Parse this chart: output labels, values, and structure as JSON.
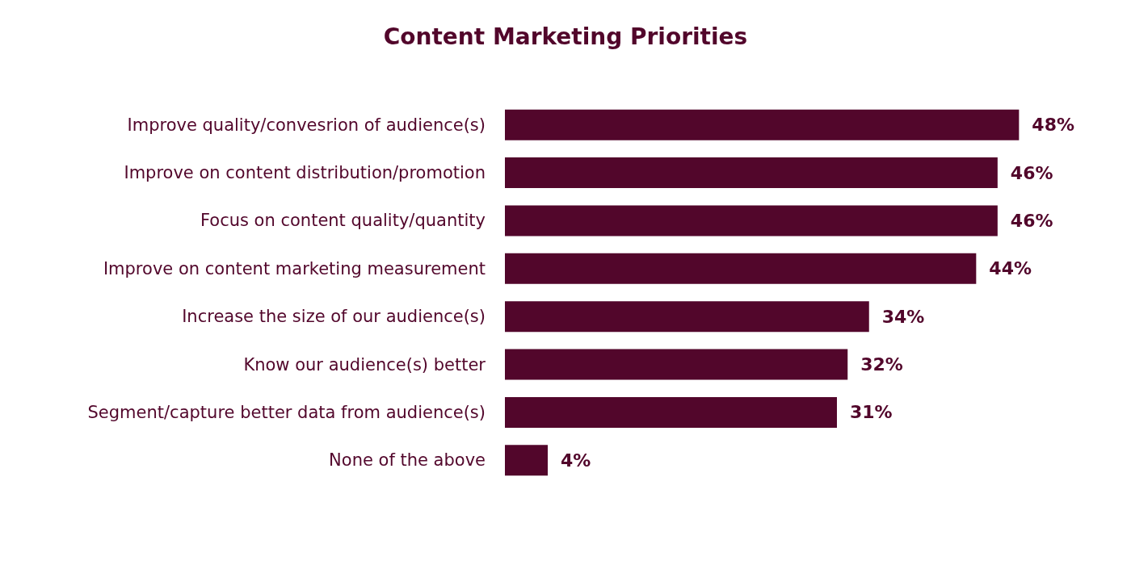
{
  "chart_data": {
    "type": "bar",
    "orientation": "horizontal",
    "title": "Content Marketing Priorities",
    "categories": [
      "Improve quality/convesrion of audience(s)",
      "Improve on content distribution/promotion",
      "Focus on content quality/quantity",
      "Improve on content marketing measurement",
      "Increase the size of our audience(s)",
      "Know our audience(s) better",
      "Segment/capture better data from audience(s)",
      "None of the above"
    ],
    "values": [
      48,
      46,
      46,
      44,
      34,
      32,
      31,
      4
    ],
    "value_labels": [
      "48%",
      "46%",
      "46%",
      "44%",
      "34%",
      "32%",
      "31%",
      "4%"
    ],
    "color": "#52062b",
    "grid": false
  }
}
